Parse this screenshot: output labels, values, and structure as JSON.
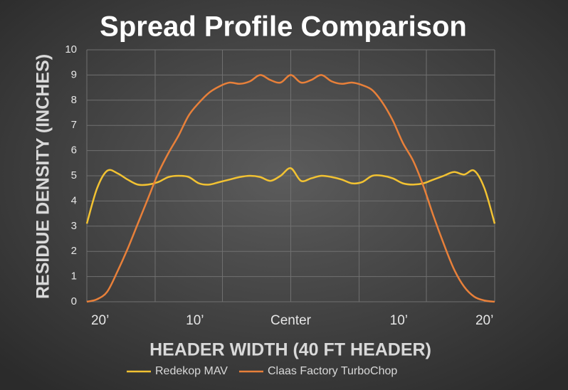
{
  "chart_data": {
    "type": "line",
    "title": "Spread Profile Comparison",
    "y_label": "RESIDUE DENSITY (INCHES)",
    "x_label": "HEADER WIDTH (40 FT HEADER)",
    "x": [
      -20,
      -19,
      -18,
      -17,
      -16,
      -15,
      -14,
      -13,
      -12,
      -11,
      -10,
      -9,
      -8,
      -7,
      -6,
      -5,
      -4,
      -3,
      -2,
      -1,
      0,
      1,
      2,
      3,
      4,
      5,
      6,
      7,
      8,
      9,
      10,
      11,
      12,
      13,
      14,
      15,
      16,
      17,
      18,
      19,
      20
    ],
    "series": [
      {
        "name": "Redekop MAV",
        "color": "#f2c232",
        "values": [
          3.1,
          4.5,
          5.2,
          5.1,
          4.85,
          4.65,
          4.65,
          4.75,
          4.95,
          5.0,
          4.95,
          4.7,
          4.65,
          4.75,
          4.85,
          4.95,
          5.0,
          4.95,
          4.8,
          5.0,
          5.3,
          4.8,
          4.9,
          5.0,
          4.95,
          4.85,
          4.7,
          4.75,
          5.0,
          5.0,
          4.9,
          4.7,
          4.65,
          4.7,
          4.85,
          5.0,
          5.15,
          5.05,
          5.2,
          4.5,
          3.1
        ]
      },
      {
        "name": "Claas Factory TurboChop",
        "color": "#e8803a",
        "values": [
          0,
          0.1,
          0.4,
          1.2,
          2.1,
          3.1,
          4.1,
          5.1,
          5.9,
          6.6,
          7.4,
          7.9,
          8.3,
          8.55,
          8.7,
          8.65,
          8.75,
          9.0,
          8.8,
          8.7,
          9.0,
          8.7,
          8.8,
          9.0,
          8.75,
          8.65,
          8.7,
          8.6,
          8.4,
          7.9,
          7.2,
          6.3,
          5.6,
          4.6,
          3.4,
          2.3,
          1.3,
          0.6,
          0.2,
          0.05,
          0
        ]
      }
    ],
    "xlim": [
      -20,
      20
    ],
    "xticks": [
      {
        "value": -18.7,
        "label": "20’"
      },
      {
        "value": -9.4,
        "label": "10’"
      },
      {
        "value": 0,
        "label": "Center"
      },
      {
        "value": 10.6,
        "label": "10’"
      },
      {
        "value": 19,
        "label": "20’"
      }
    ],
    "xgrid": [
      -20,
      -13.3,
      -6.7,
      0,
      6.7,
      13.3,
      20
    ],
    "ylim": [
      0,
      10
    ],
    "yticks": [
      0,
      1,
      2,
      3,
      4,
      5,
      6,
      7,
      8,
      9,
      10
    ],
    "grid": true,
    "legend": "bottom"
  }
}
